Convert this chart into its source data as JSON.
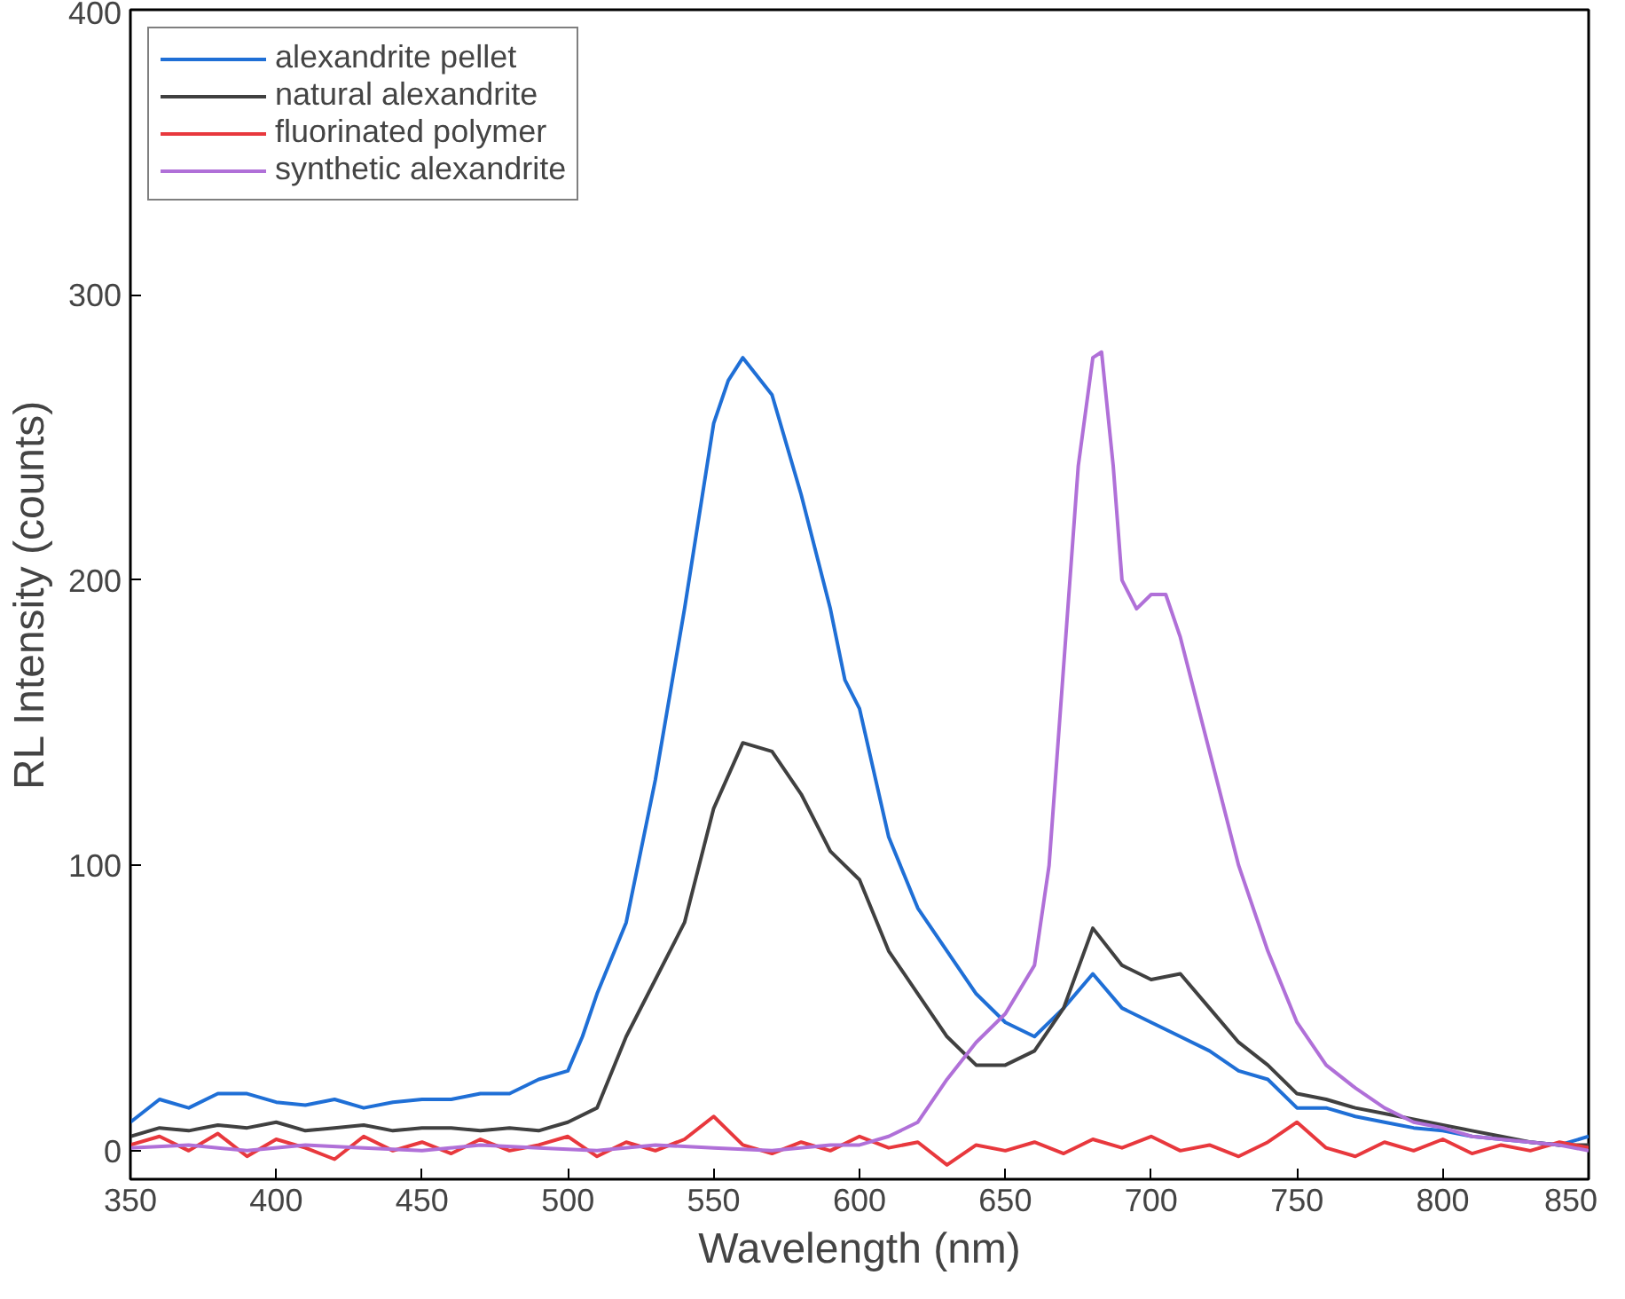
{
  "chart_data": {
    "type": "line",
    "xlabel": "Wavelength (nm)",
    "ylabel": "RL Intensity (counts)",
    "xlim": [
      350,
      850
    ],
    "ylim": [
      -10,
      400
    ],
    "xticks": [
      350,
      400,
      450,
      500,
      550,
      600,
      650,
      700,
      750,
      800,
      850
    ],
    "yticks": [
      0,
      100,
      200,
      300,
      400
    ],
    "grid": false,
    "legend": "top left",
    "line_style": "solid",
    "marker": "none",
    "series": [
      {
        "name": "alexandrite pellet",
        "color": "#1f6fd6",
        "x": [
          350,
          360,
          370,
          380,
          390,
          400,
          410,
          420,
          430,
          440,
          450,
          460,
          470,
          480,
          490,
          500,
          505,
          510,
          520,
          530,
          540,
          550,
          555,
          560,
          570,
          580,
          590,
          595,
          600,
          610,
          620,
          630,
          640,
          650,
          660,
          670,
          680,
          690,
          700,
          710,
          720,
          730,
          740,
          750,
          760,
          770,
          780,
          790,
          800,
          810,
          820,
          830,
          840,
          850
        ],
        "values": [
          10,
          18,
          15,
          20,
          20,
          17,
          16,
          18,
          15,
          17,
          18,
          18,
          20,
          20,
          25,
          28,
          40,
          55,
          80,
          130,
          190,
          255,
          270,
          278,
          265,
          230,
          190,
          165,
          155,
          110,
          85,
          70,
          55,
          45,
          40,
          50,
          62,
          50,
          45,
          40,
          35,
          28,
          25,
          15,
          15,
          12,
          10,
          8,
          7,
          5,
          4,
          3,
          2,
          5
        ]
      },
      {
        "name": "natural alexandrite",
        "color": "#404040",
        "x": [
          350,
          360,
          370,
          380,
          390,
          400,
          410,
          420,
          430,
          440,
          450,
          460,
          470,
          480,
          490,
          500,
          510,
          520,
          530,
          540,
          550,
          560,
          570,
          580,
          590,
          600,
          610,
          620,
          630,
          640,
          650,
          660,
          670,
          680,
          690,
          700,
          710,
          720,
          730,
          740,
          750,
          760,
          770,
          780,
          790,
          800,
          810,
          820,
          830,
          840,
          850
        ],
        "values": [
          5,
          8,
          7,
          9,
          8,
          10,
          7,
          8,
          9,
          7,
          8,
          8,
          7,
          8,
          7,
          10,
          15,
          40,
          60,
          80,
          120,
          143,
          140,
          125,
          105,
          95,
          70,
          55,
          40,
          30,
          30,
          35,
          50,
          78,
          65,
          60,
          62,
          50,
          38,
          30,
          20,
          18,
          15,
          13,
          11,
          9,
          7,
          5,
          3,
          2,
          2
        ]
      },
      {
        "name": "fluorinated polymer",
        "color": "#e8383d",
        "x": [
          350,
          360,
          370,
          380,
          390,
          400,
          410,
          420,
          430,
          440,
          450,
          460,
          470,
          480,
          490,
          500,
          510,
          520,
          530,
          540,
          550,
          560,
          570,
          580,
          590,
          600,
          610,
          620,
          630,
          640,
          650,
          660,
          670,
          680,
          690,
          700,
          710,
          720,
          730,
          740,
          750,
          760,
          770,
          780,
          790,
          800,
          810,
          820,
          830,
          840,
          850
        ],
        "values": [
          2,
          5,
          0,
          6,
          -2,
          4,
          1,
          -3,
          5,
          0,
          3,
          -1,
          4,
          0,
          2,
          5,
          -2,
          3,
          0,
          4,
          12,
          2,
          -1,
          3,
          0,
          5,
          1,
          3,
          -5,
          2,
          0,
          3,
          -1,
          4,
          1,
          5,
          0,
          2,
          -2,
          3,
          10,
          1,
          -2,
          3,
          0,
          4,
          -1,
          2,
          0,
          3,
          1
        ]
      },
      {
        "name": "synthetic alexandrite",
        "color": "#b070d8",
        "x": [
          350,
          370,
          390,
          410,
          430,
          450,
          470,
          490,
          510,
          530,
          550,
          570,
          590,
          600,
          610,
          620,
          630,
          640,
          650,
          660,
          665,
          670,
          675,
          680,
          683,
          687,
          690,
          695,
          700,
          705,
          710,
          720,
          730,
          740,
          750,
          760,
          770,
          780,
          790,
          800,
          810,
          820,
          830,
          840,
          850
        ],
        "values": [
          1,
          2,
          0,
          2,
          1,
          0,
          2,
          1,
          0,
          2,
          1,
          0,
          2,
          2,
          5,
          10,
          25,
          38,
          48,
          65,
          100,
          170,
          240,
          278,
          280,
          240,
          200,
          190,
          195,
          195,
          180,
          140,
          100,
          70,
          45,
          30,
          22,
          15,
          10,
          8,
          5,
          4,
          3,
          2,
          0
        ]
      }
    ]
  }
}
